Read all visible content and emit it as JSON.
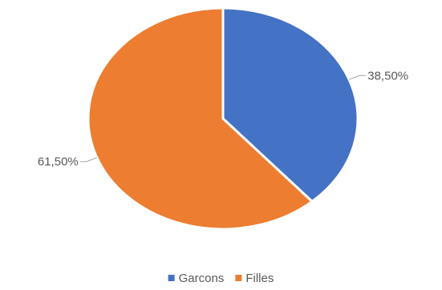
{
  "chart_data": {
    "type": "pie",
    "title": "",
    "legend_position": "bottom",
    "categories": [
      "Garcons",
      "Filles"
    ],
    "values": [
      38.5,
      61.5
    ],
    "data_labels": [
      "38,50%",
      "61,50%"
    ],
    "colors": [
      "#4472c4",
      "#ed7d31"
    ],
    "start_angle_deg": 0,
    "direction": "clockwise"
  }
}
